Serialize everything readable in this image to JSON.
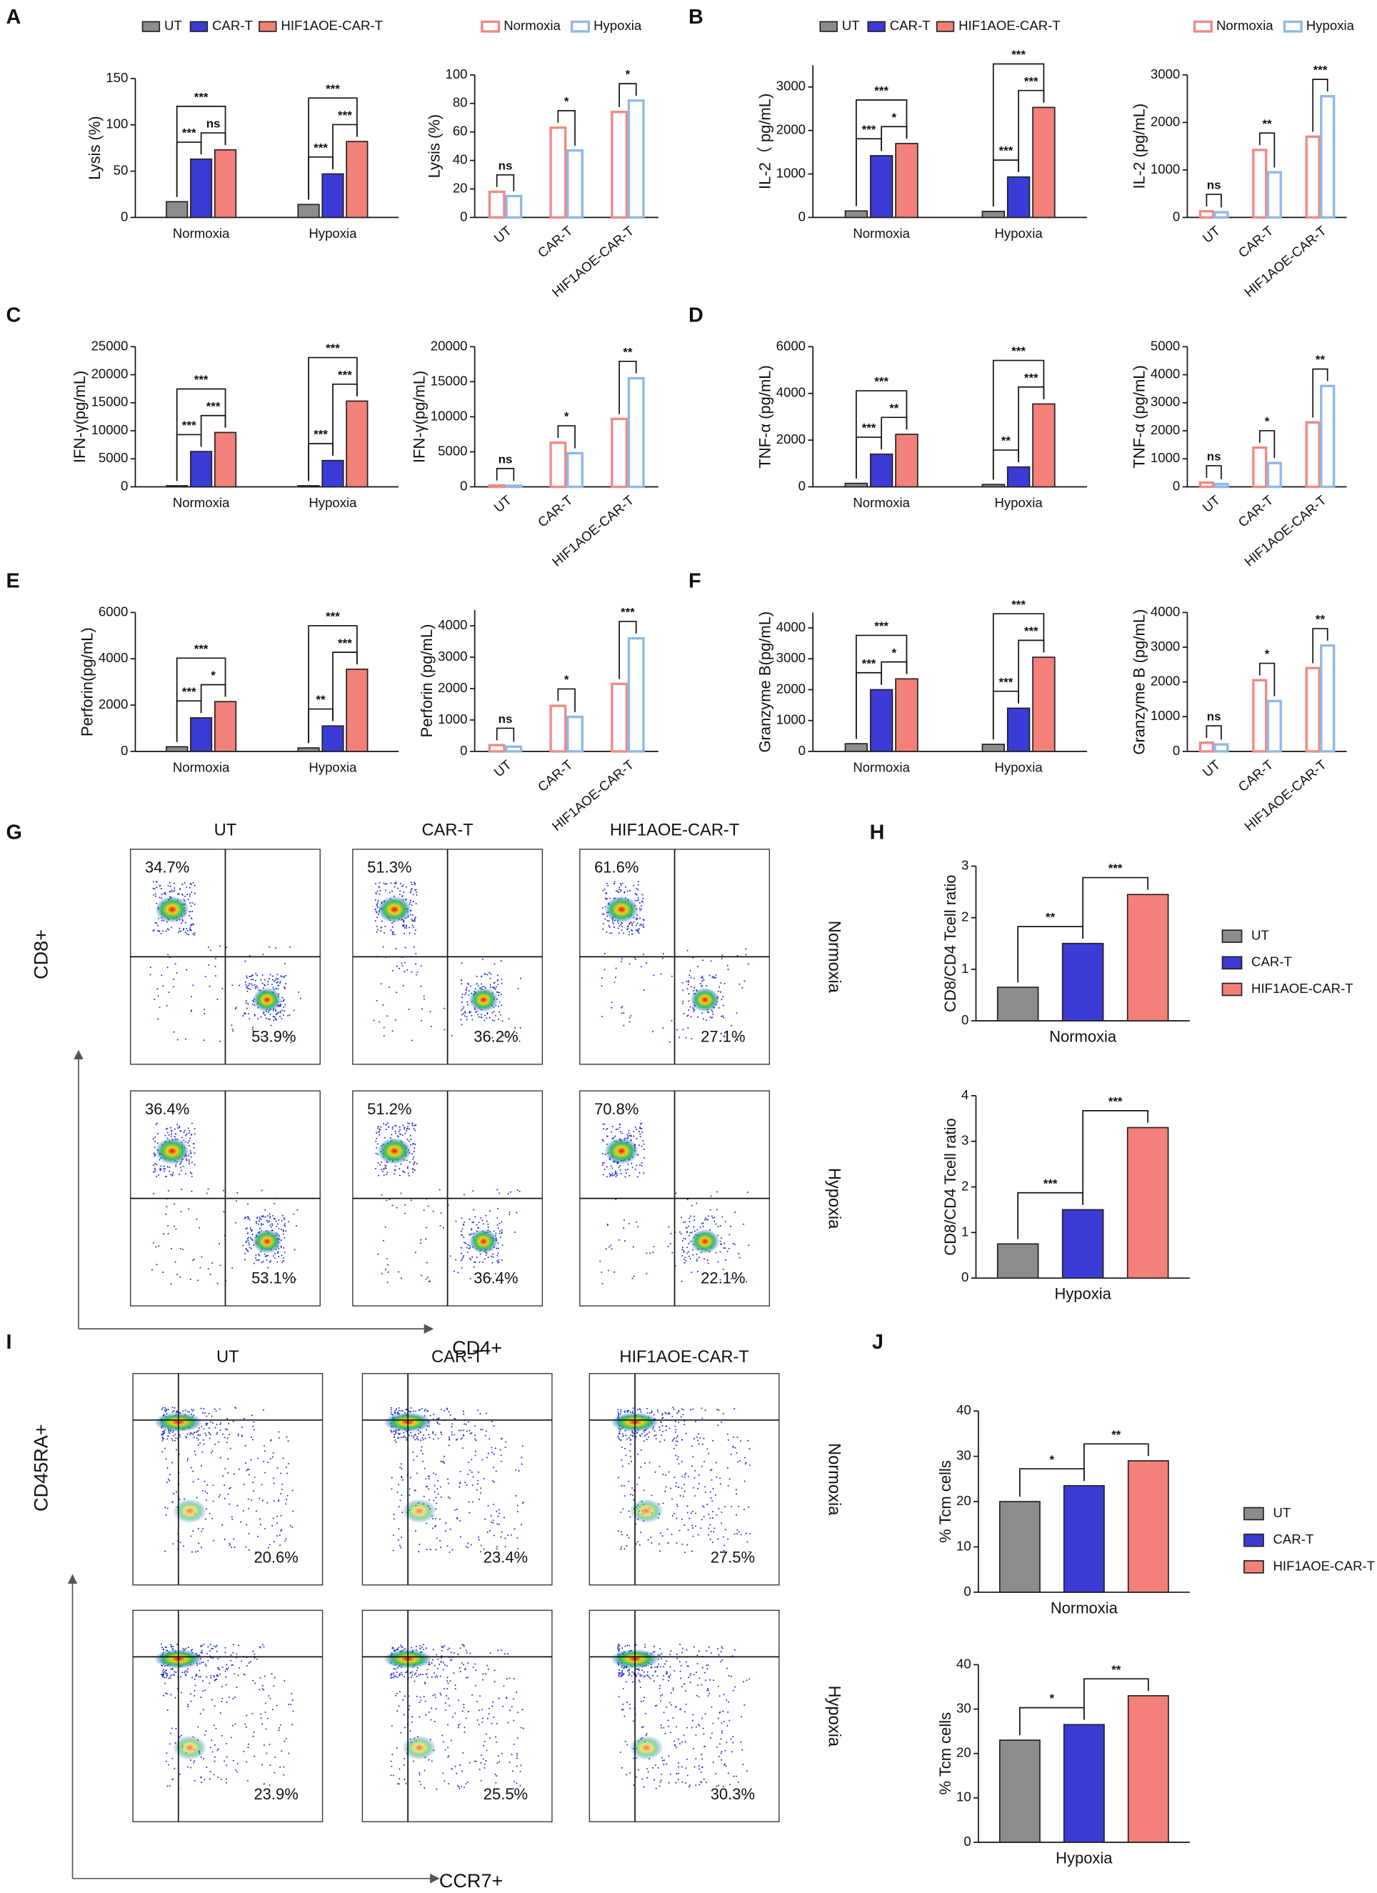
{
  "panel_labels": [
    "A",
    "B",
    "C",
    "D",
    "E",
    "F",
    "G",
    "H",
    "I",
    "J"
  ],
  "flow": [
    {
      "columns": [
        "UT",
        "CAR-T",
        "HIF1AOE-CAR-T"
      ],
      "rows": [
        "Normoxia",
        "Hypoxia"
      ],
      "y_label": "CD8+",
      "x_label": "CD4+",
      "upper_left": [
        [
          "34.7%",
          "51.3%",
          "61.6%"
        ],
        [
          "36.4%",
          "51.2%",
          "70.8%"
        ]
      ],
      "lower_right": [
        [
          "53.9%",
          "36.2%",
          "27.1%"
        ],
        [
          "53.1%",
          "36.4%",
          "22.1%"
        ]
      ]
    },
    {
      "columns": [
        "UT",
        "CAR-T",
        "HIF1AOE-CAR-T"
      ],
      "rows": [
        "Normoxia",
        "Hypoxia"
      ],
      "y_label": "CD45RA+",
      "x_label": "CCR7+",
      "lower_right": [
        [
          "20.6%",
          "23.4%",
          "27.5%"
        ],
        [
          "23.9%",
          "25.5%",
          "30.3%"
        ]
      ]
    }
  ],
  "chart_data": [
    {
      "type": "bar",
      "style": "filled",
      "ylabel": "Lysis (%)",
      "categories": [
        "Normoxia",
        "Hypoxia"
      ],
      "legend": "top",
      "series": [
        {
          "name": "UT",
          "color": "#8c8c8c",
          "values": [
            17,
            14
          ]
        },
        {
          "name": "CAR-T",
          "color": "#3b3bd6",
          "values": [
            63,
            47
          ]
        },
        {
          "name": "HIF1AOE-CAR-T",
          "color": "#f4807a",
          "values": [
            73,
            82
          ]
        }
      ],
      "ylim": [
        0,
        150
      ],
      "yticks": [
        0,
        50,
        100,
        150
      ],
      "significance": [
        {
          "category": 0,
          "from": 0,
          "to": 1,
          "label": "***"
        },
        {
          "category": 0,
          "from": 1,
          "to": 2,
          "label": "ns"
        },
        {
          "category": 0,
          "from": 0,
          "to": 2,
          "label": "***"
        },
        {
          "category": 1,
          "from": 0,
          "to": 1,
          "label": "***"
        },
        {
          "category": 1,
          "from": 1,
          "to": 2,
          "label": "***"
        },
        {
          "category": 1,
          "from": 0,
          "to": 2,
          "label": "***"
        }
      ]
    },
    {
      "type": "bar",
      "style": "outline",
      "ylabel": "Lysis (%)",
      "categories": [
        "UT",
        "CAR-T",
        "HIF1AOE-CAR-T"
      ],
      "legend": "top",
      "series": [
        {
          "name": "Normoxia",
          "color": "#f08a84",
          "values": [
            18,
            63,
            74
          ]
        },
        {
          "name": "Hypoxia",
          "color": "#8fb8e8",
          "values": [
            15,
            47,
            82
          ]
        }
      ],
      "ylim": [
        0,
        100
      ],
      "yticks": [
        0,
        20,
        40,
        60,
        80,
        100
      ],
      "significance": [
        {
          "category": 0,
          "from": 0,
          "to": 1,
          "label": "ns"
        },
        {
          "category": 1,
          "from": 0,
          "to": 1,
          "label": "*"
        },
        {
          "category": 2,
          "from": 0,
          "to": 1,
          "label": "*"
        }
      ]
    },
    {
      "type": "bar",
      "style": "filled",
      "ylabel": "IL-2（ pg/mL)",
      "categories": [
        "Normoxia",
        "Hypoxia"
      ],
      "legend": "top",
      "series": [
        {
          "name": "UT",
          "color": "#8c8c8c",
          "values": [
            150,
            140
          ]
        },
        {
          "name": "CAR-T",
          "color": "#3b3bd6",
          "values": [
            1420,
            930
          ]
        },
        {
          "name": "HIF1AOE-CAR-T",
          "color": "#f4807a",
          "values": [
            1700,
            2530
          ]
        }
      ],
      "ylim": [
        0,
        3500
      ],
      "yticks": [
        0,
        1000,
        2000,
        3000
      ],
      "significance": [
        {
          "category": 0,
          "from": 0,
          "to": 1,
          "label": "***"
        },
        {
          "category": 0,
          "from": 1,
          "to": 2,
          "label": "*"
        },
        {
          "category": 0,
          "from": 0,
          "to": 2,
          "label": "***"
        },
        {
          "category": 1,
          "from": 0,
          "to": 1,
          "label": "***"
        },
        {
          "category": 1,
          "from": 1,
          "to": 2,
          "label": "***"
        },
        {
          "category": 1,
          "from": 0,
          "to": 2,
          "label": "***"
        }
      ]
    },
    {
      "type": "bar",
      "style": "outline",
      "ylabel": "IL-2 (pg/mL)",
      "categories": [
        "UT",
        "CAR-T",
        "HIF1AOE-CAR-T"
      ],
      "legend": "top",
      "series": [
        {
          "name": "Normoxia",
          "color": "#f08a84",
          "values": [
            130,
            1420,
            1700
          ]
        },
        {
          "name": "Hypoxia",
          "color": "#8fb8e8",
          "values": [
            110,
            950,
            2550
          ]
        }
      ],
      "ylim": [
        0,
        3000
      ],
      "yticks": [
        0,
        1000,
        2000,
        3000
      ],
      "significance": [
        {
          "category": 0,
          "from": 0,
          "to": 1,
          "label": "ns"
        },
        {
          "category": 1,
          "from": 0,
          "to": 1,
          "label": "**"
        },
        {
          "category": 2,
          "from": 0,
          "to": 1,
          "label": "***"
        }
      ]
    },
    {
      "type": "bar",
      "style": "filled",
      "ylabel": "IFN-γ(pg/mL)",
      "categories": [
        "Normoxia",
        "Hypoxia"
      ],
      "series": [
        {
          "color": "#8c8c8c",
          "values": [
            200,
            200
          ]
        },
        {
          "color": "#3b3bd6",
          "values": [
            6300,
            4700
          ]
        },
        {
          "color": "#f4807a",
          "values": [
            9700,
            15300
          ]
        }
      ],
      "ylim": [
        0,
        25000
      ],
      "yticks": [
        0,
        5000,
        10000,
        15000,
        20000,
        25000
      ],
      "significance": [
        {
          "category": 0,
          "from": 0,
          "to": 1,
          "label": "***"
        },
        {
          "category": 0,
          "from": 1,
          "to": 2,
          "label": "***"
        },
        {
          "category": 0,
          "from": 0,
          "to": 2,
          "label": "***"
        },
        {
          "category": 1,
          "from": 0,
          "to": 1,
          "label": "***"
        },
        {
          "category": 1,
          "from": 1,
          "to": 2,
          "label": "***"
        },
        {
          "category": 1,
          "from": 0,
          "to": 2,
          "label": "***"
        }
      ]
    },
    {
      "type": "bar",
      "style": "outline",
      "ylabel": "IFN-γ(pg/mL)",
      "categories": [
        "UT",
        "CAR-T",
        "HIF1AOE-CAR-T"
      ],
      "series": [
        {
          "color": "#f08a84",
          "values": [
            200,
            6300,
            9700
          ]
        },
        {
          "color": "#8fb8e8",
          "values": [
            150,
            4800,
            15500
          ]
        }
      ],
      "ylim": [
        0,
        20000
      ],
      "yticks": [
        0,
        5000,
        10000,
        15000,
        20000
      ],
      "significance": [
        {
          "category": 0,
          "from": 0,
          "to": 1,
          "label": "ns"
        },
        {
          "category": 1,
          "from": 0,
          "to": 1,
          "label": "*"
        },
        {
          "category": 2,
          "from": 0,
          "to": 1,
          "label": "**"
        }
      ]
    },
    {
      "type": "bar",
      "style": "filled",
      "ylabel": "TNF-α (pg/mL)",
      "categories": [
        "Normoxia",
        "Hypoxia"
      ],
      "series": [
        {
          "color": "#8c8c8c",
          "values": [
            150,
            100
          ]
        },
        {
          "color": "#3b3bd6",
          "values": [
            1400,
            850
          ]
        },
        {
          "color": "#f4807a",
          "values": [
            2250,
            3550
          ]
        }
      ],
      "ylim": [
        0,
        6000
      ],
      "yticks": [
        0,
        2000,
        4000,
        6000
      ],
      "significance": [
        {
          "category": 0,
          "from": 0,
          "to": 1,
          "label": "***"
        },
        {
          "category": 0,
          "from": 1,
          "to": 2,
          "label": "**"
        },
        {
          "category": 0,
          "from": 0,
          "to": 2,
          "label": "***"
        },
        {
          "category": 1,
          "from": 0,
          "to": 1,
          "label": "**"
        },
        {
          "category": 1,
          "from": 1,
          "to": 2,
          "label": "***"
        },
        {
          "category": 1,
          "from": 0,
          "to": 2,
          "label": "***"
        }
      ]
    },
    {
      "type": "bar",
      "style": "outline",
      "ylabel": "TNF-α (pg/mL)",
      "categories": [
        "UT",
        "CAR-T",
        "HIF1AOE-CAR-T"
      ],
      "series": [
        {
          "color": "#f08a84",
          "values": [
            150,
            1400,
            2300
          ]
        },
        {
          "color": "#8fb8e8",
          "values": [
            100,
            850,
            3600
          ]
        }
      ],
      "ylim": [
        0,
        5000
      ],
      "yticks": [
        0,
        1000,
        2000,
        3000,
        4000,
        5000
      ],
      "significance": [
        {
          "category": 0,
          "from": 0,
          "to": 1,
          "label": "ns"
        },
        {
          "category": 1,
          "from": 0,
          "to": 1,
          "label": "*"
        },
        {
          "category": 2,
          "from": 0,
          "to": 1,
          "label": "**"
        }
      ]
    },
    {
      "type": "bar",
      "style": "filled",
      "ylabel": "Perforin(pg/mL)",
      "categories": [
        "Normoxia",
        "Hypoxia"
      ],
      "series": [
        {
          "color": "#8c8c8c",
          "values": [
            200,
            150
          ]
        },
        {
          "color": "#3b3bd6",
          "values": [
            1450,
            1100
          ]
        },
        {
          "color": "#f4807a",
          "values": [
            2150,
            3550
          ]
        }
      ],
      "ylim": [
        0,
        6000
      ],
      "yticks": [
        0,
        2000,
        4000,
        6000
      ],
      "significance": [
        {
          "category": 0,
          "from": 0,
          "to": 1,
          "label": "***"
        },
        {
          "category": 0,
          "from": 1,
          "to": 2,
          "label": "*"
        },
        {
          "category": 0,
          "from": 0,
          "to": 2,
          "label": "***"
        },
        {
          "category": 1,
          "from": 0,
          "to": 1,
          "label": "**"
        },
        {
          "category": 1,
          "from": 1,
          "to": 2,
          "label": "***"
        },
        {
          "category": 1,
          "from": 0,
          "to": 2,
          "label": "***"
        }
      ]
    },
    {
      "type": "bar",
      "style": "outline",
      "ylabel": "Perforin (pg/mL)",
      "categories": [
        "UT",
        "CAR-T",
        "HIF1AOE-CAR-T"
      ],
      "series": [
        {
          "color": "#f08a84",
          "values": [
            200,
            1450,
            2150
          ]
        },
        {
          "color": "#8fb8e8",
          "values": [
            150,
            1100,
            3600
          ]
        }
      ],
      "ylim": [
        0,
        4500
      ],
      "yticks": [
        0,
        1000,
        2000,
        3000,
        4000
      ],
      "significance": [
        {
          "category": 0,
          "from": 0,
          "to": 1,
          "label": "ns"
        },
        {
          "category": 1,
          "from": 0,
          "to": 1,
          "label": "*"
        },
        {
          "category": 2,
          "from": 0,
          "to": 1,
          "label": "***"
        }
      ]
    },
    {
      "type": "bar",
      "style": "filled",
      "ylabel": "Granzyme B(pg/mL)",
      "categories": [
        "Normoxia",
        "Hypoxia"
      ],
      "series": [
        {
          "color": "#8c8c8c",
          "values": [
            250,
            230
          ]
        },
        {
          "color": "#3b3bd6",
          "values": [
            2000,
            1400
          ]
        },
        {
          "color": "#f4807a",
          "values": [
            2350,
            3050
          ]
        }
      ],
      "ylim": [
        0,
        4500
      ],
      "yticks": [
        0,
        1000,
        2000,
        3000,
        4000
      ],
      "significance": [
        {
          "category": 0,
          "from": 0,
          "to": 1,
          "label": "***"
        },
        {
          "category": 0,
          "from": 1,
          "to": 2,
          "label": "*"
        },
        {
          "category": 0,
          "from": 0,
          "to": 2,
          "label": "***"
        },
        {
          "category": 1,
          "from": 0,
          "to": 1,
          "label": "***"
        },
        {
          "category": 1,
          "from": 1,
          "to": 2,
          "label": "***"
        },
        {
          "category": 1,
          "from": 0,
          "to": 2,
          "label": "***"
        }
      ]
    },
    {
      "type": "bar",
      "style": "outline",
      "ylabel": "Granzyme B (pg/mL)",
      "categories": [
        "UT",
        "CAR-T",
        "HIF1AOE-CAR-T"
      ],
      "series": [
        {
          "color": "#f08a84",
          "values": [
            250,
            2050,
            2400
          ]
        },
        {
          "color": "#8fb8e8",
          "values": [
            200,
            1450,
            3050
          ]
        }
      ],
      "ylim": [
        0,
        4000
      ],
      "yticks": [
        0,
        1000,
        2000,
        3000,
        4000
      ],
      "significance": [
        {
          "category": 0,
          "from": 0,
          "to": 1,
          "label": "ns"
        },
        {
          "category": 1,
          "from": 0,
          "to": 1,
          "label": "*"
        },
        {
          "category": 2,
          "from": 0,
          "to": 1,
          "label": "**"
        }
      ]
    },
    {
      "type": "bar",
      "style": "filled",
      "ylabel": "CD8/CD4 Tcell ratio",
      "categories": [
        "Normoxia"
      ],
      "legend": "right",
      "series": [
        {
          "name": "UT",
          "color": "#8c8c8c",
          "values": [
            0.65
          ]
        },
        {
          "name": "CAR-T",
          "color": "#3b3bd6",
          "values": [
            1.5
          ]
        },
        {
          "name": "HIF1AOE-CAR-T",
          "color": "#f4807a",
          "values": [
            2.45
          ]
        }
      ],
      "ylim": [
        0,
        3
      ],
      "yticks": [
        0,
        1,
        2,
        3
      ],
      "significance": [
        {
          "category": 0,
          "from": 0,
          "to": 1,
          "label": "**"
        },
        {
          "category": 0,
          "from": 1,
          "to": 2,
          "label": "***"
        }
      ]
    },
    {
      "type": "bar",
      "style": "filled",
      "ylabel": "CD8/CD4 Tcell ratio",
      "categories": [
        "Hypoxia"
      ],
      "series": [
        {
          "color": "#8c8c8c",
          "values": [
            0.75
          ]
        },
        {
          "color": "#3b3bd6",
          "values": [
            1.5
          ]
        },
        {
          "color": "#f4807a",
          "values": [
            3.3
          ]
        }
      ],
      "ylim": [
        0,
        4
      ],
      "yticks": [
        0,
        1,
        2,
        3,
        4
      ],
      "significance": [
        {
          "category": 0,
          "from": 0,
          "to": 1,
          "label": "***"
        },
        {
          "category": 0,
          "from": 1,
          "to": 2,
          "label": "***"
        }
      ]
    },
    {
      "type": "bar",
      "style": "filled",
      "ylabel": "% Tcm cells",
      "categories": [
        "Normoxia"
      ],
      "legend": "right",
      "series": [
        {
          "name": "UT",
          "color": "#8c8c8c",
          "values": [
            20
          ]
        },
        {
          "name": "CAR-T",
          "color": "#3b3bd6",
          "values": [
            23.5
          ]
        },
        {
          "name": "HIF1AOE-CAR-T",
          "color": "#f4807a",
          "values": [
            29
          ]
        }
      ],
      "ylim": [
        0,
        40
      ],
      "yticks": [
        0,
        10,
        20,
        30,
        40
      ],
      "significance": [
        {
          "category": 0,
          "from": 0,
          "to": 1,
          "label": "*"
        },
        {
          "category": 0,
          "from": 1,
          "to": 2,
          "label": "**"
        }
      ]
    },
    {
      "type": "bar",
      "style": "filled",
      "ylabel": "% Tcm cells",
      "categories": [
        "Hypoxia"
      ],
      "series": [
        {
          "color": "#8c8c8c",
          "values": [
            23
          ]
        },
        {
          "color": "#3b3bd6",
          "values": [
            26.5
          ]
        },
        {
          "color": "#f4807a",
          "values": [
            33
          ]
        }
      ],
      "ylim": [
        0,
        40
      ],
      "yticks": [
        0,
        10,
        20,
        30,
        40
      ],
      "significance": [
        {
          "category": 0,
          "from": 0,
          "to": 1,
          "label": "*"
        },
        {
          "category": 0,
          "from": 1,
          "to": 2,
          "label": "**"
        }
      ]
    }
  ]
}
